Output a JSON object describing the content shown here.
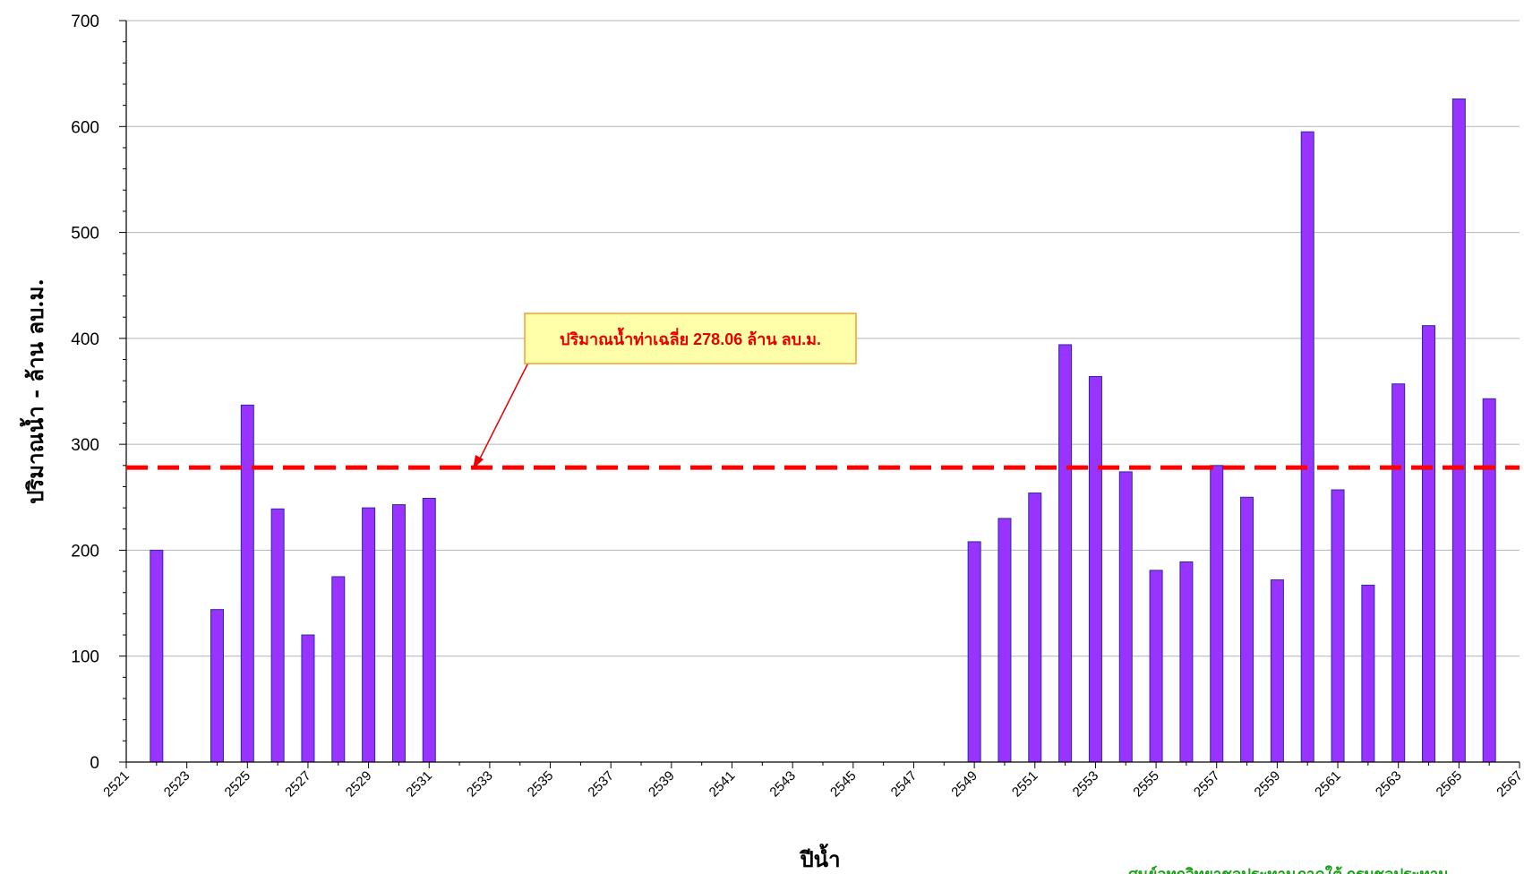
{
  "chart_data": {
    "type": "bar",
    "xlabel": "ปีน้ำ",
    "ylabel": "ปริมาณน้ำ  -  ล้าน ลบ.ม.",
    "ylim": [
      0,
      700
    ],
    "yticks": [
      0,
      100,
      200,
      300,
      400,
      500,
      600,
      700
    ],
    "xlim": [
      2521,
      2567
    ],
    "xticks": [
      2521,
      2523,
      2525,
      2527,
      2529,
      2531,
      2533,
      2535,
      2537,
      2539,
      2541,
      2543,
      2545,
      2547,
      2549,
      2551,
      2553,
      2555,
      2557,
      2559,
      2561,
      2563,
      2565,
      2567
    ],
    "grid": true,
    "bar_color": "#9933ff",
    "average_line": {
      "value": 278.06,
      "color": "#ff0000",
      "style": "dashed"
    },
    "annotation": "ปริมาณน้ำท่าเฉลี่ย 278.06 ล้าน ลบ.ม.",
    "credit_text": "ศูนย์อุทกวิทยาชลประทานภาคใต้ กรมชลประทาน",
    "data": [
      {
        "x": 2522,
        "y": 200
      },
      {
        "x": 2524,
        "y": 144
      },
      {
        "x": 2525,
        "y": 337
      },
      {
        "x": 2526,
        "y": 239
      },
      {
        "x": 2527,
        "y": 120
      },
      {
        "x": 2528,
        "y": 175
      },
      {
        "x": 2529,
        "y": 240
      },
      {
        "x": 2530,
        "y": 243
      },
      {
        "x": 2531,
        "y": 249
      },
      {
        "x": 2549,
        "y": 208
      },
      {
        "x": 2550,
        "y": 230
      },
      {
        "x": 2551,
        "y": 254
      },
      {
        "x": 2552,
        "y": 394
      },
      {
        "x": 2553,
        "y": 364
      },
      {
        "x": 2554,
        "y": 274
      },
      {
        "x": 2555,
        "y": 181
      },
      {
        "x": 2556,
        "y": 189
      },
      {
        "x": 2557,
        "y": 280
      },
      {
        "x": 2558,
        "y": 250
      },
      {
        "x": 2559,
        "y": 172
      },
      {
        "x": 2560,
        "y": 595
      },
      {
        "x": 2561,
        "y": 257
      },
      {
        "x": 2562,
        "y": 167
      },
      {
        "x": 2563,
        "y": 357
      },
      {
        "x": 2564,
        "y": 412
      },
      {
        "x": 2565,
        "y": 626
      },
      {
        "x": 2566,
        "y": 343
      }
    ]
  }
}
